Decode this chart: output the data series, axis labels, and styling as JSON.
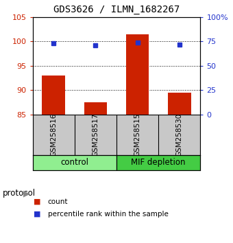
{
  "title": "GDS3626 / ILMN_1682267",
  "samples": [
    "GSM258516",
    "GSM258517",
    "GSM258515",
    "GSM258530"
  ],
  "groups": [
    "control",
    "control",
    "MIF depletion",
    "MIF depletion"
  ],
  "bar_color": "#CC2200",
  "dot_color": "#2233CC",
  "counts": [
    93.0,
    87.5,
    101.5,
    89.5
  ],
  "percentile_ranks": [
    73.0,
    71.0,
    74.0,
    71.5
  ],
  "ylim_left": [
    85,
    105
  ],
  "ylim_right": [
    0,
    100
  ],
  "yticks_left": [
    85,
    90,
    95,
    100,
    105
  ],
  "yticks_right": [
    0,
    25,
    50,
    75,
    100
  ],
  "ytick_labels_right": [
    "0",
    "25",
    "50",
    "75",
    "100%"
  ],
  "left_tick_color": "#CC2200",
  "right_tick_color": "#2233CC",
  "bar_bottom": 85,
  "legend_count_label": "count",
  "legend_pct_label": "percentile rank within the sample",
  "protocol_label": "protocol",
  "group_label_control": "control",
  "group_label_mif": "MIF depletion",
  "control_color": "#90EE90",
  "mif_color": "#44CC44",
  "sample_bg": "#C8C8C8",
  "background_color": "#ffffff",
  "bar_width": 0.55
}
